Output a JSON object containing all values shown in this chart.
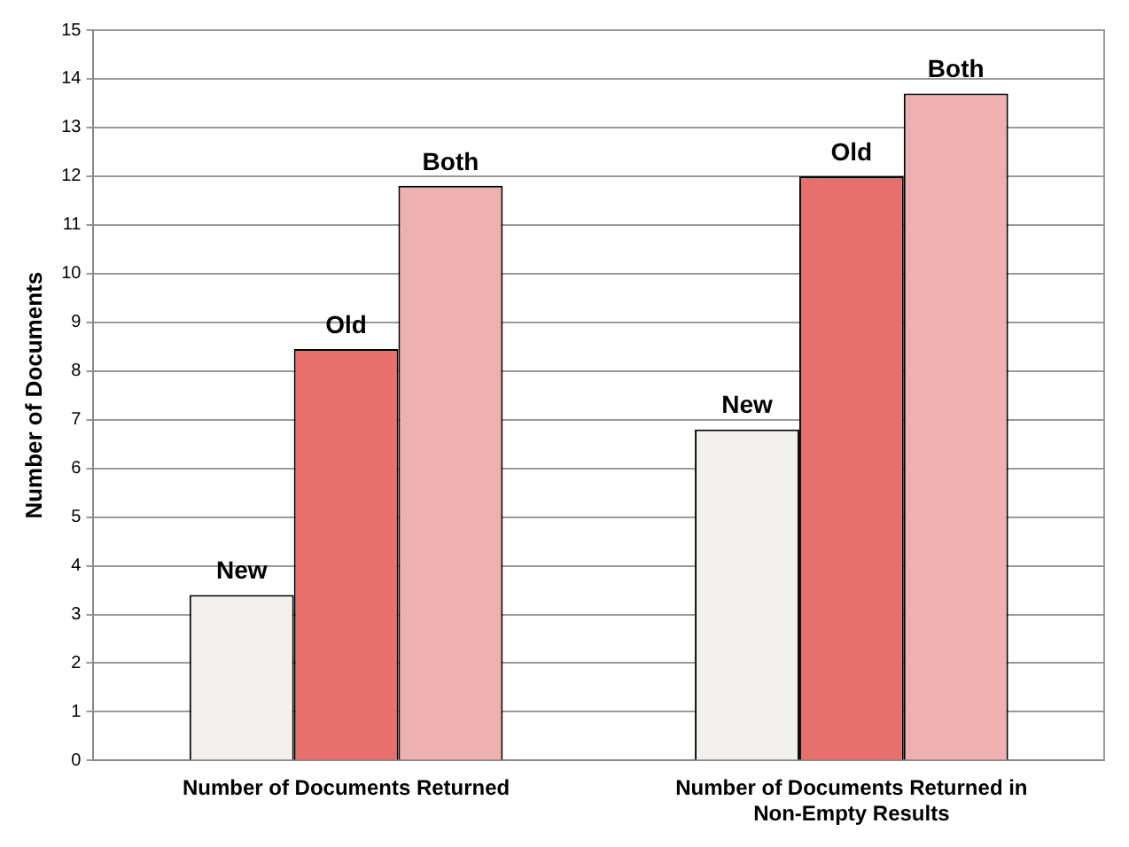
{
  "chart_data": {
    "type": "bar",
    "ylabel": "Number of Documents",
    "categories": [
      "Number of Documents Returned",
      "Number of Documents Returned in Non-Empty Results"
    ],
    "series": [
      {
        "name": "New",
        "color": "#f2f0ec",
        "values": [
          3.4,
          6.8
        ]
      },
      {
        "name": "Old",
        "color": "#e8706c",
        "values": [
          8.45,
          12.0
        ]
      },
      {
        "name": "Both",
        "color": "#eeb0b0",
        "values": [
          11.8,
          13.7
        ]
      }
    ],
    "ylim": [
      0,
      15
    ],
    "yticks": [
      0,
      1,
      2,
      3,
      4,
      5,
      6,
      7,
      8,
      9,
      10,
      11,
      12,
      13,
      14,
      15
    ],
    "grid": "y",
    "legend": false
  }
}
